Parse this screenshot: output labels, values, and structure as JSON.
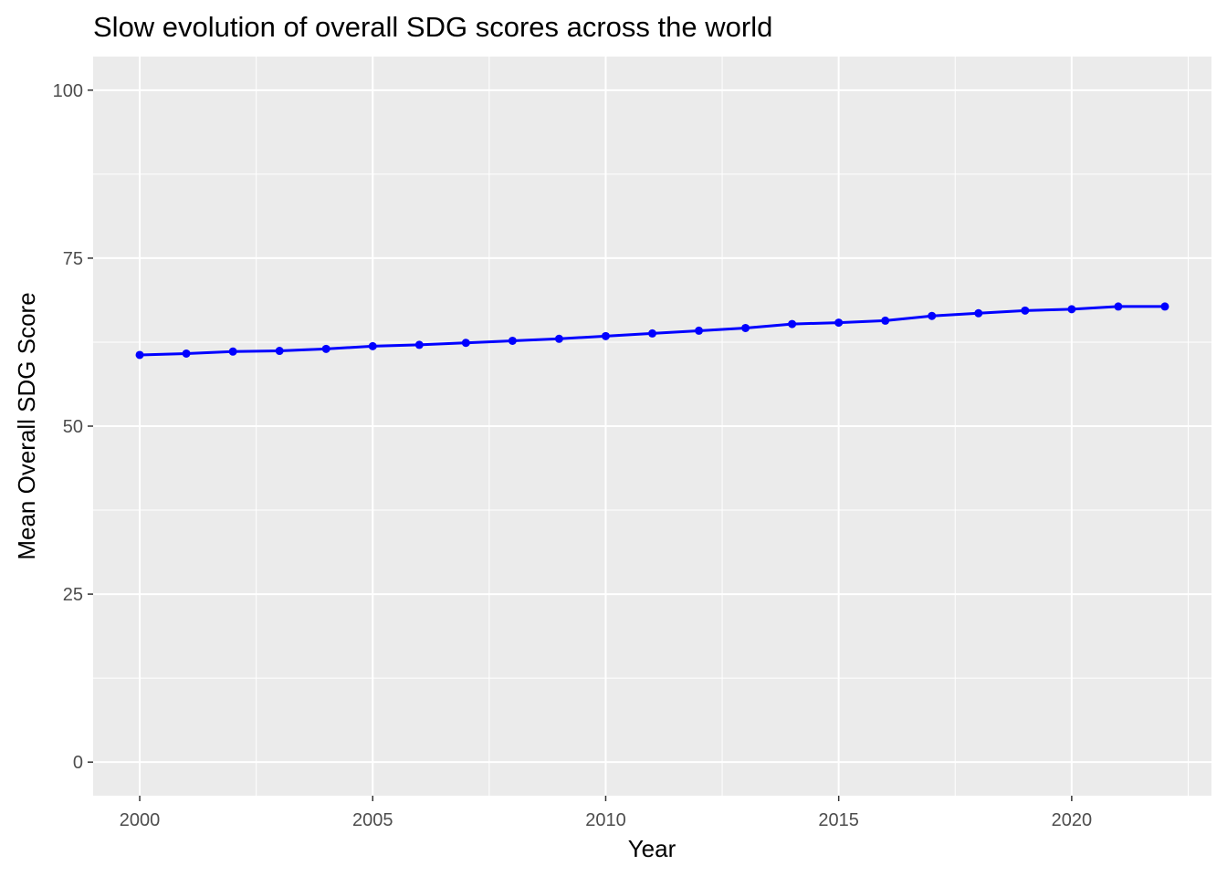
{
  "colors": {
    "panel_background": "#ebebeb",
    "grid_line": "#ffffff",
    "series_line": "#0000ff",
    "tick_text": "#4d4d4d",
    "tick_mark": "#333333"
  },
  "chart_data": {
    "type": "line",
    "title": "Slow evolution of overall SDG scores across the world",
    "xlabel": "Year",
    "ylabel": "Mean Overall SDG Score",
    "xlim": [
      1999,
      2023
    ],
    "ylim": [
      -5,
      105
    ],
    "x_ticks": [
      2000,
      2005,
      2010,
      2015,
      2020
    ],
    "y_ticks": [
      0,
      25,
      50,
      75,
      100
    ],
    "grid": true,
    "legend": "none",
    "series": [
      {
        "x": [
          2000,
          2001,
          2002,
          2003,
          2004,
          2005,
          2006,
          2007,
          2008,
          2009,
          2010,
          2011,
          2012,
          2013,
          2014,
          2015,
          2016,
          2017,
          2018,
          2019,
          2020,
          2021,
          2022
        ],
        "values": [
          60.6,
          60.8,
          61.1,
          61.2,
          61.5,
          61.9,
          62.1,
          62.4,
          62.7,
          63.0,
          63.4,
          63.8,
          64.2,
          64.6,
          65.2,
          65.4,
          65.7,
          66.4,
          66.8,
          67.2,
          67.4,
          67.8,
          67.8
        ]
      }
    ]
  }
}
